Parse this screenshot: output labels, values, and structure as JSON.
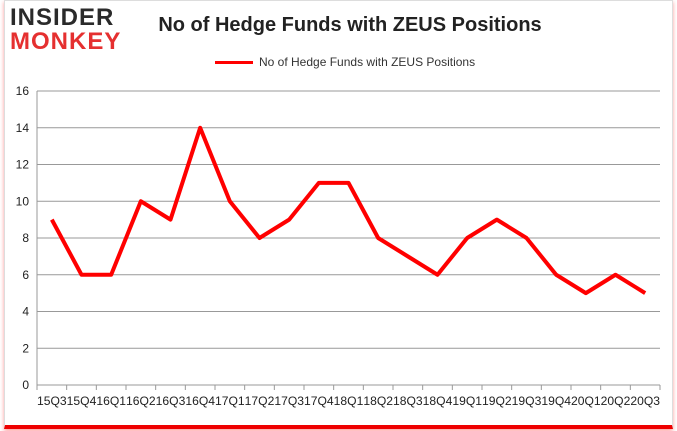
{
  "logo": {
    "line1": "INSIDER",
    "line2": "MONKEY"
  },
  "chart_data": {
    "type": "line",
    "title": "No of Hedge Funds with ZEUS Positions",
    "categories": [
      "15Q3",
      "15Q4",
      "16Q1",
      "16Q2",
      "16Q3",
      "16Q4",
      "17Q1",
      "17Q2",
      "17Q3",
      "17Q4",
      "18Q1",
      "18Q2",
      "18Q3",
      "18Q4",
      "19Q1",
      "19Q2",
      "19Q3",
      "19Q4",
      "20Q1",
      "20Q2",
      "20Q3"
    ],
    "series": [
      {
        "name": "No of Hedge Funds with ZEUS Positions",
        "values": [
          9,
          6,
          6,
          10,
          9,
          14,
          10,
          8,
          9,
          11,
          11,
          8,
          7,
          6,
          8,
          9,
          8,
          6,
          5,
          6,
          5
        ],
        "color": "#ff0000"
      }
    ],
    "yticks": [
      0,
      2,
      4,
      6,
      8,
      10,
      12,
      14,
      16
    ],
    "ylim": [
      0,
      16
    ],
    "xlabel": "",
    "ylabel": "",
    "grid": true,
    "legend": "top-center"
  }
}
